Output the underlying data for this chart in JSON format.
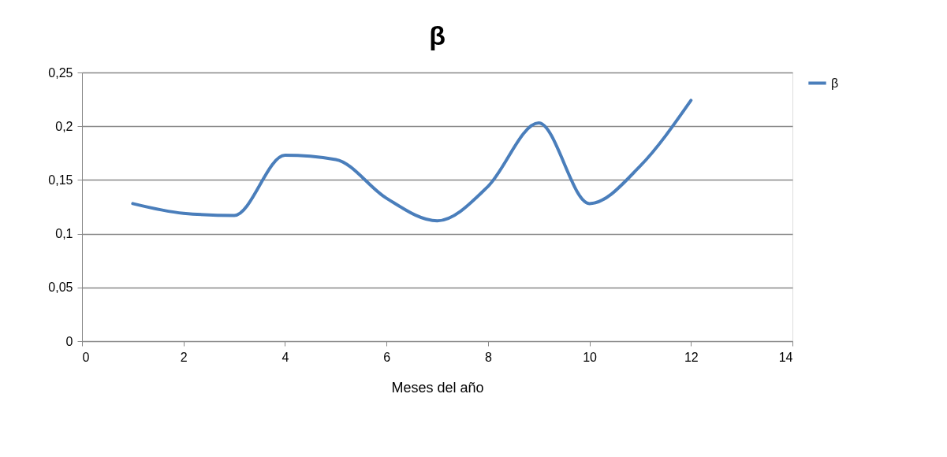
{
  "chart_data": {
    "type": "line",
    "title": "β",
    "xlabel": "Meses del año",
    "x": [
      1,
      2,
      3,
      4,
      5,
      6,
      7,
      8,
      9,
      10,
      11,
      12
    ],
    "series": [
      {
        "name": "β",
        "color": "#4a7ebb",
        "values": [
          0.128,
          0.119,
          0.117,
          0.173,
          0.169,
          0.133,
          0.112,
          0.144,
          0.203,
          0.128,
          0.163,
          0.224
        ]
      }
    ],
    "xlim": [
      0,
      14
    ],
    "xticks": [
      0,
      2,
      4,
      6,
      8,
      10,
      12,
      14
    ],
    "ylim": [
      0,
      0.25
    ],
    "yticks": [
      0,
      {
        "value": 0.05,
        "label": "0,05"
      },
      {
        "value": 0.1,
        "label": "0,1"
      },
      {
        "value": 0.15,
        "label": "0,15"
      },
      {
        "value": 0.2,
        "label": "0,2"
      },
      {
        "value": 0.25,
        "label": "0,25"
      }
    ],
    "grid": "y",
    "legend": "right",
    "marker": "none",
    "line_style": "solid"
  }
}
